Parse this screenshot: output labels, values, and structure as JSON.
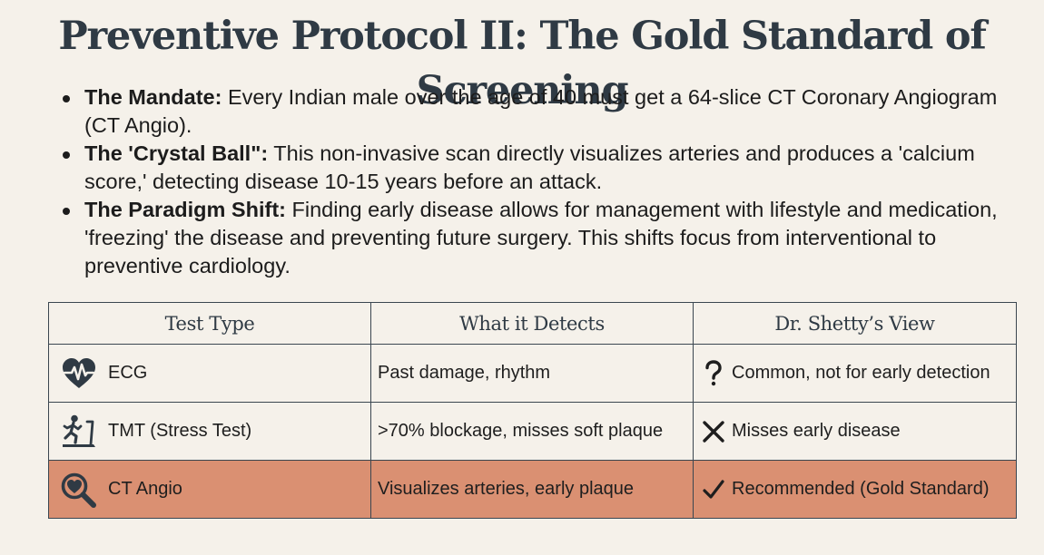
{
  "title": "Preventive Protocol II: The Gold Standard of Screening",
  "bullets": [
    {
      "label": "The Mandate:",
      "text": "Every Indian male over the age of 40 must get a 64-slice CT Coronary Angiogram (CT Angio)."
    },
    {
      "label": "The 'Crystal Ball\":",
      "text": "This non-invasive scan directly visualizes arteries and produces a 'calcium score,' detecting disease 10-15 years before an attack."
    },
    {
      "label": "The Paradigm Shift:",
      "text": "Finding early disease allows for management with lifestyle and medication, 'freezing' the disease and preventing future surgery. This shifts focus from interventional to preventive cardiology."
    }
  ],
  "table": {
    "headers": [
      "Test Type",
      "What it Detects",
      "Dr. Shetty’s View"
    ],
    "rows": [
      {
        "icon": "heart-pulse-icon",
        "test": "ECG",
        "detects": "Past damage, rhythm",
        "view_icon": "question-mark-icon",
        "view": "Common, not for early detection"
      },
      {
        "icon": "treadmill-runner-icon",
        "test": "TMT (Stress Test)",
        "detects": ">70% blockage, misses soft plaque",
        "view_icon": "cross-icon",
        "view": "Misses early disease"
      },
      {
        "icon": "magnifier-heart-icon",
        "test": "CT Angio",
        "detects": "Visualizes arteries, early plaque",
        "view_icon": "checkmark-icon",
        "view": "Recommended (Gold Standard)"
      }
    ]
  },
  "colors": {
    "background": "#f5f1ea",
    "title": "#2f3a44",
    "highlight_row": "#da9072",
    "border": "#3a4650"
  }
}
